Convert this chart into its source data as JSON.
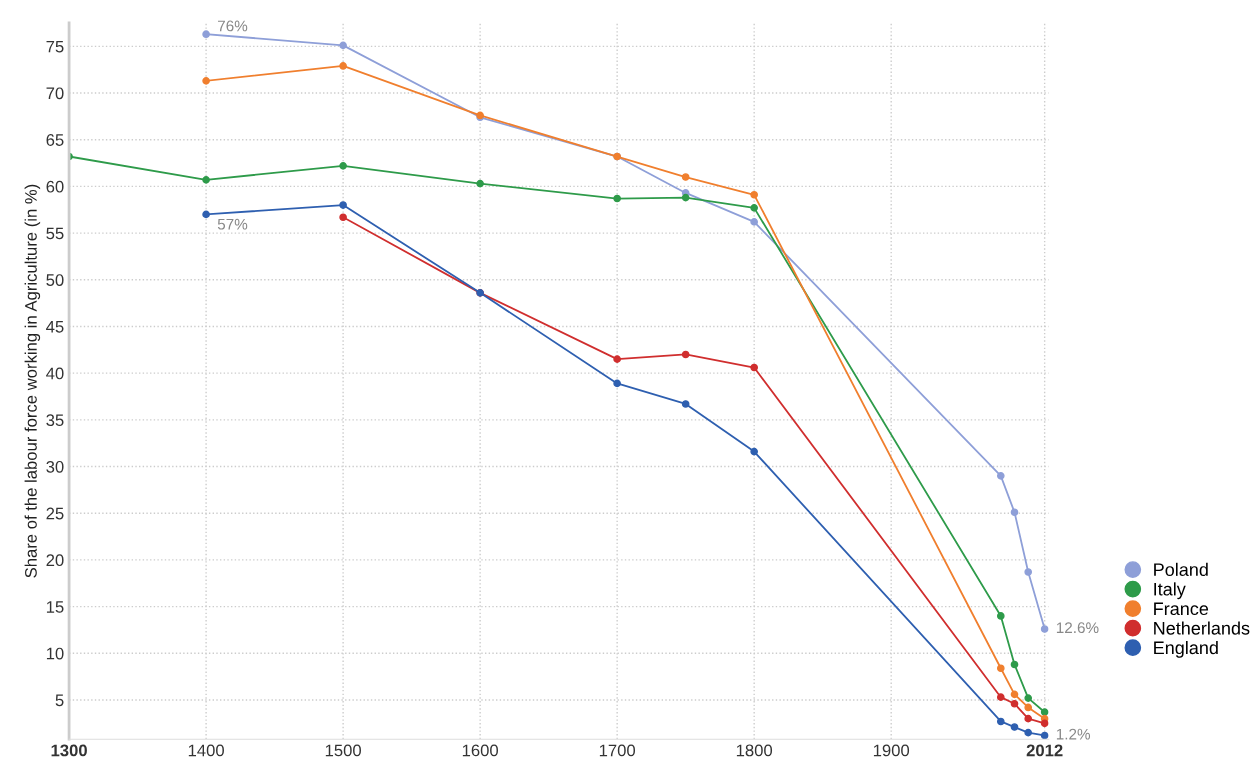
{
  "chart_data": {
    "type": "line",
    "ylabel": "Share of the labour force working in Agriculture (in %)",
    "xlim": [
      1300,
      2015
    ],
    "xticks": [
      1300,
      1400,
      1500,
      1600,
      1700,
      1800,
      1900,
      2012
    ],
    "ylim": [
      0.8,
      77.5
    ],
    "yticks": [
      5,
      10,
      15,
      20,
      25,
      30,
      35,
      40,
      45,
      50,
      55,
      60,
      65,
      70,
      75
    ],
    "grid": true,
    "marker": "circle",
    "line_style": "solid",
    "legend": "right",
    "series": [
      {
        "name": "Poland",
        "color": "#8e9fd8",
        "x": [
          1400,
          1500,
          1600,
          1700,
          1750,
          1800,
          1980,
          1990,
          2000,
          2012
        ],
        "values": [
          76.3,
          75.1,
          67.4,
          63.2,
          59.3,
          56.2,
          29.0,
          25.1,
          18.7,
          12.6
        ],
        "value_labels": [
          "76%",
          null,
          null,
          null,
          null,
          null,
          null,
          null,
          null,
          "12.6%"
        ]
      },
      {
        "name": "Italy",
        "color": "#2e9b4a",
        "x": [
          1300,
          1400,
          1500,
          1600,
          1700,
          1750,
          1800,
          1980,
          1990,
          2000,
          2012
        ],
        "values": [
          63.2,
          60.7,
          62.2,
          60.3,
          58.7,
          58.8,
          57.7,
          14.0,
          8.8,
          5.2,
          3.7
        ]
      },
      {
        "name": "France",
        "color": "#f07f2e",
        "x": [
          1400,
          1500,
          1600,
          1700,
          1750,
          1800,
          1980,
          1990,
          2000,
          2012
        ],
        "values": [
          71.3,
          72.9,
          67.6,
          63.2,
          61.0,
          59.1,
          8.4,
          5.6,
          4.2,
          3.0
        ]
      },
      {
        "name": "Netherlands",
        "color": "#d02e2e",
        "x": [
          1500,
          1600,
          1700,
          1750,
          1800,
          1980,
          1990,
          2000,
          2012
        ],
        "values": [
          56.7,
          48.6,
          41.5,
          42.0,
          40.6,
          5.3,
          4.6,
          3.0,
          2.5
        ]
      },
      {
        "name": "England",
        "color": "#2e5fb0",
        "x": [
          1400,
          1500,
          1600,
          1700,
          1750,
          1800,
          1980,
          1990,
          2000,
          2012
        ],
        "values": [
          57.0,
          58.0,
          48.6,
          38.9,
          36.7,
          31.6,
          2.7,
          2.1,
          1.5,
          1.2
        ],
        "value_labels": [
          "57%",
          null,
          null,
          null,
          null,
          null,
          null,
          null,
          null,
          "1.2%"
        ]
      }
    ]
  }
}
